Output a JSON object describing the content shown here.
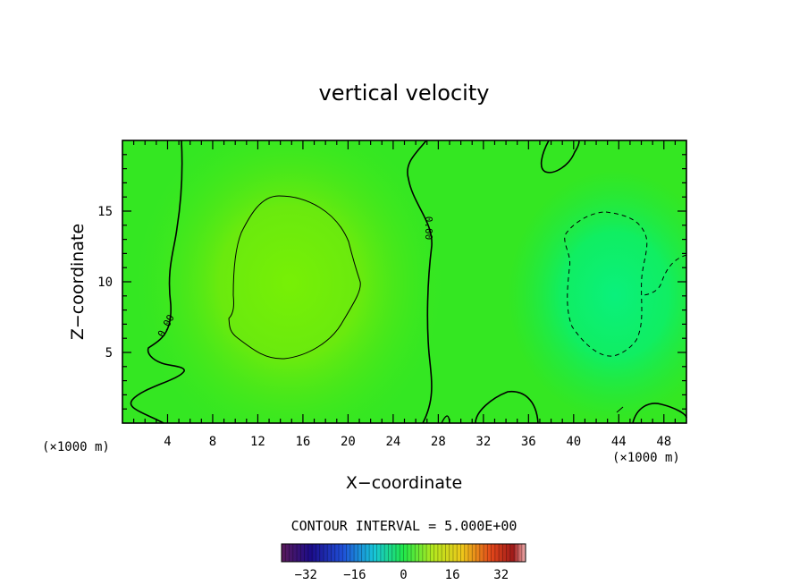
{
  "chart_data": {
    "type": "heatmap",
    "title": "vertical velocity",
    "xlabel": "X−coordinate",
    "ylabel": "Z−coordinate",
    "x_unit": "(×1000 m)",
    "y_unit": "(×1000 m)",
    "xlim": [
      0,
      50
    ],
    "ylim": [
      0,
      20
    ],
    "x_ticks": [
      4,
      8,
      12,
      16,
      20,
      24,
      28,
      32,
      36,
      40,
      44,
      48
    ],
    "y_ticks": [
      5,
      10,
      15
    ],
    "contour_label": "0.00",
    "contour_interval_text": "CONTOUR INTERVAL = 5.000E+00",
    "colorbar": {
      "min": -40,
      "max": 40,
      "ticks": [
        "−32",
        "−16",
        "0",
        "16",
        "32"
      ],
      "tick_values": [
        -32,
        -16,
        0,
        16,
        32
      ]
    },
    "features": [
      {
        "name": "updraft",
        "x": 15,
        "z": 10,
        "value": 4
      },
      {
        "name": "downdraft",
        "x": 44,
        "z": 10,
        "value": -4
      }
    ]
  }
}
